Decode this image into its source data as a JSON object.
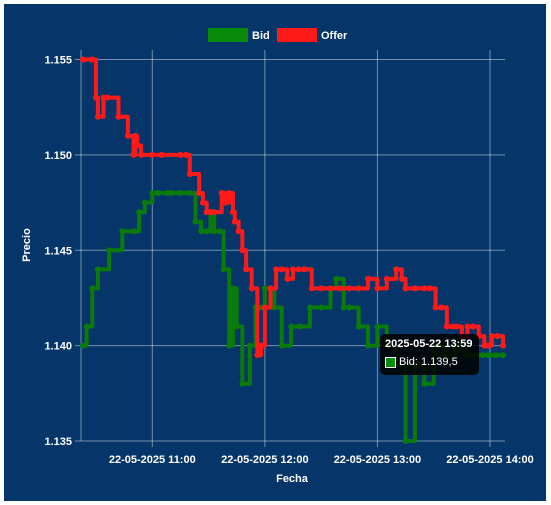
{
  "chart_data": {
    "type": "line",
    "xlabel": "Fecha",
    "ylabel": "Precio",
    "ylim": [
      1.135,
      1.1555
    ],
    "xlim": [
      "22-05-2025 10:22",
      "22-05-2025 14:08"
    ],
    "yticks": [
      "1.135",
      "1.140",
      "1.145",
      "1.150",
      "1.155"
    ],
    "ytick_values": [
      1.135,
      1.14,
      1.145,
      1.15,
      1.155
    ],
    "xticks": [
      "22-05-2025 11:00",
      "22-05-2025 12:00",
      "22-05-2025 13:00",
      "22-05-2025 14:00"
    ],
    "xtick_values": [
      "22-05-2025 11:00",
      "22-05-2025 12:00",
      "22-05-2025 13:00",
      "22-05-2025 14:00"
    ],
    "grid": true,
    "legend_position": "top-center",
    "series": [
      {
        "name": "Bid",
        "color": "#0a7a0a",
        "x": [
          "22-05-2025 10:23",
          "22-05-2025 10:25",
          "22-05-2025 10:28",
          "22-05-2025 10:31",
          "22-05-2025 10:37",
          "22-05-2025 10:44",
          "22-05-2025 10:50",
          "22-05-2025 10:53",
          "22-05-2025 10:56",
          "22-05-2025 11:00",
          "22-05-2025 11:03",
          "22-05-2025 11:08",
          "22-05-2025 11:10",
          "22-05-2025 11:15",
          "22-05-2025 11:20",
          "22-05-2025 11:23",
          "22-05-2025 11:26",
          "22-05-2025 11:29",
          "22-05-2025 11:31",
          "22-05-2025 11:33",
          "22-05-2025 11:36",
          "22-05-2025 11:38",
          "22-05-2025 11:41",
          "22-05-2025 11:43",
          "22-05-2025 11:45",
          "22-05-2025 11:48",
          "22-05-2025 11:52",
          "22-05-2025 11:55",
          "22-05-2025 11:58",
          "22-05-2025 12:00",
          "22-05-2025 12:03",
          "22-05-2025 12:05",
          "22-05-2025 12:09",
          "22-05-2025 12:14",
          "22-05-2025 12:19",
          "22-05-2025 12:24",
          "22-05-2025 12:30",
          "22-05-2025 12:35",
          "22-05-2025 12:38",
          "22-05-2025 12:42",
          "22-05-2025 12:45",
          "22-05-2025 12:50",
          "22-05-2025 12:55",
          "22-05-2025 13:00",
          "22-05-2025 13:05",
          "22-05-2025 13:10",
          "22-05-2025 13:15",
          "22-05-2025 13:20",
          "22-05-2025 13:25",
          "22-05-2025 13:30",
          "22-05-2025 13:35",
          "22-05-2025 13:38",
          "22-05-2025 13:41",
          "22-05-2025 13:44",
          "22-05-2025 13:47",
          "22-05-2025 13:50",
          "22-05-2025 13:53",
          "22-05-2025 13:56",
          "22-05-2025 13:59",
          "22-05-2025 14:03",
          "22-05-2025 14:07"
        ],
        "y": [
          1.14,
          1.141,
          1.143,
          1.144,
          1.145,
          1.146,
          1.146,
          1.147,
          1.1475,
          1.148,
          1.148,
          1.148,
          1.148,
          1.148,
          1.148,
          1.1465,
          1.146,
          1.146,
          1.147,
          1.146,
          1.146,
          1.144,
          1.14,
          1.143,
          1.141,
          1.138,
          1.14,
          1.142,
          1.142,
          1.143,
          1.143,
          1.142,
          1.14,
          1.141,
          1.141,
          1.142,
          1.142,
          1.143,
          1.1435,
          1.142,
          1.142,
          1.141,
          1.14,
          1.141,
          1.14,
          1.139,
          1.135,
          1.139,
          1.138,
          1.14,
          1.1395,
          1.1395,
          1.14,
          1.1398,
          1.1395,
          1.1395,
          1.1395,
          1.1395,
          1.1395,
          1.1395,
          1.1395
        ]
      },
      {
        "name": "Offer",
        "color": "#ff1a1a",
        "x": [
          "22-05-2025 10:23",
          "22-05-2025 10:28",
          "22-05-2025 10:30",
          "22-05-2025 10:31",
          "22-05-2025 10:34",
          "22-05-2025 10:36",
          "22-05-2025 10:42",
          "22-05-2025 10:47",
          "22-05-2025 10:50",
          "22-05-2025 10:51",
          "22-05-2025 10:52",
          "22-05-2025 10:54",
          "22-05-2025 11:00",
          "22-05-2025 11:05",
          "22-05-2025 11:15",
          "22-05-2025 11:18",
          "22-05-2025 11:20",
          "22-05-2025 11:25",
          "22-05-2025 11:27",
          "22-05-2025 11:29",
          "22-05-2025 11:31",
          "22-05-2025 11:33",
          "22-05-2025 11:37",
          "22-05-2025 11:39",
          "22-05-2025 11:41",
          "22-05-2025 11:43",
          "22-05-2025 11:44",
          "22-05-2025 11:46",
          "22-05-2025 11:48",
          "22-05-2025 11:50",
          "22-05-2025 11:53",
          "22-05-2025 11:56",
          "22-05-2025 11:58",
          "22-05-2025 12:00",
          "22-05-2025 12:03",
          "22-05-2025 12:06",
          "22-05-2025 12:09",
          "22-05-2025 12:12",
          "22-05-2025 12:15",
          "22-05-2025 12:18",
          "22-05-2025 12:21",
          "22-05-2025 12:25",
          "22-05-2025 12:30",
          "22-05-2025 12:35",
          "22-05-2025 12:40",
          "22-05-2025 12:45",
          "22-05-2025 12:50",
          "22-05-2025 12:55",
          "22-05-2025 13:00",
          "22-05-2025 13:05",
          "22-05-2025 13:10",
          "22-05-2025 13:13",
          "22-05-2025 13:15",
          "22-05-2025 13:20",
          "22-05-2025 13:25",
          "22-05-2025 13:28",
          "22-05-2025 13:31",
          "22-05-2025 13:34",
          "22-05-2025 13:37",
          "22-05-2025 13:40",
          "22-05-2025 13:42",
          "22-05-2025 13:45",
          "22-05-2025 13:48",
          "22-05-2025 13:51",
          "22-05-2025 13:54",
          "22-05-2025 13:57",
          "22-05-2025 13:59",
          "22-05-2025 14:01",
          "22-05-2025 14:04",
          "22-05-2025 14:07"
        ],
        "y": [
          1.155,
          1.155,
          1.153,
          1.152,
          1.153,
          1.153,
          1.152,
          1.151,
          1.15,
          1.151,
          1.1505,
          1.15,
          1.15,
          1.15,
          1.15,
          1.15,
          1.149,
          1.148,
          1.1475,
          1.147,
          1.147,
          1.147,
          1.148,
          1.1475,
          1.148,
          1.147,
          1.1465,
          1.146,
          1.145,
          1.144,
          1.143,
          1.1395,
          1.14,
          1.142,
          1.143,
          1.144,
          1.144,
          1.1435,
          1.144,
          1.144,
          1.144,
          1.143,
          1.143,
          1.143,
          1.143,
          1.143,
          1.143,
          1.1435,
          1.143,
          1.1435,
          1.144,
          1.1435,
          1.143,
          1.143,
          1.143,
          1.143,
          1.142,
          1.142,
          1.141,
          1.141,
          1.141,
          1.1405,
          1.141,
          1.141,
          1.1405,
          1.14,
          1.14,
          1.1405,
          1.1405,
          1.14
        ]
      }
    ],
    "tooltip": {
      "title": "2025-05-22 13:59",
      "label": "Bid: 1.139,5"
    }
  }
}
